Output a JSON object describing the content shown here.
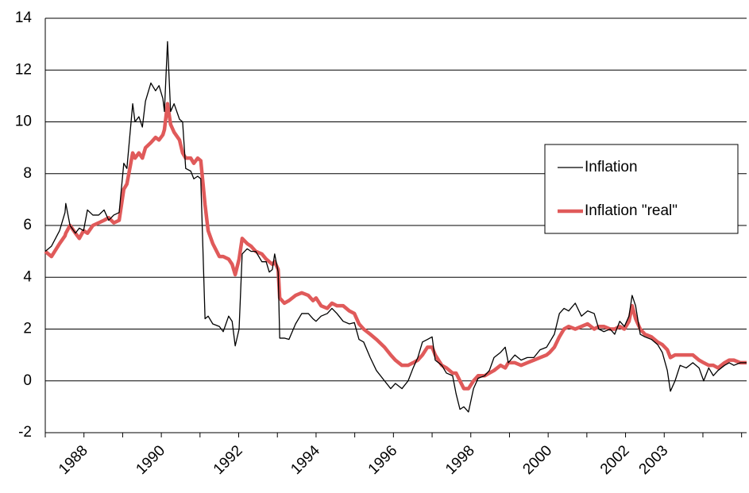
{
  "chart_data": {
    "type": "line",
    "x": [
      1987.0,
      1987.16,
      1987.37,
      1987.51,
      1987.53,
      1987.64,
      1987.78,
      1987.88,
      1987.99,
      1988.09,
      1988.23,
      1988.38,
      1988.52,
      1988.64,
      1988.77,
      1988.91,
      1989.03,
      1989.11,
      1989.26,
      1989.32,
      1989.42,
      1989.51,
      1989.59,
      1989.73,
      1989.85,
      1989.94,
      1990.04,
      1990.08,
      1990.16,
      1990.24,
      1990.33,
      1990.47,
      1990.55,
      1990.63,
      1990.76,
      1990.84,
      1990.94,
      1991.02,
      1991.13,
      1991.21,
      1991.33,
      1991.5,
      1991.6,
      1991.74,
      1991.83,
      1991.91,
      1992.01,
      1992.09,
      1992.22,
      1992.32,
      1992.44,
      1992.6,
      1992.71,
      1992.79,
      1992.87,
      1992.93,
      1993.02,
      1993.06,
      1993.18,
      1993.3,
      1993.47,
      1993.63,
      1993.8,
      1993.92,
      1994.0,
      1994.13,
      1994.29,
      1994.41,
      1994.54,
      1994.7,
      1994.86,
      1994.99,
      1995.11,
      1995.23,
      1995.4,
      1995.56,
      1995.77,
      1995.93,
      1996.05,
      1996.22,
      1996.38,
      1996.51,
      1996.63,
      1996.75,
      1996.88,
      1997.0,
      1997.08,
      1997.25,
      1997.37,
      1997.53,
      1997.62,
      1997.72,
      1997.82,
      1997.94,
      1998.07,
      1998.19,
      1998.36,
      1998.48,
      1998.6,
      1998.77,
      1998.89,
      1998.97,
      1999.14,
      1999.3,
      1999.46,
      1999.63,
      1999.79,
      1999.96,
      2000.04,
      2000.16,
      2000.29,
      2000.41,
      2000.53,
      2000.7,
      2000.86,
      2001.02,
      2001.19,
      2001.31,
      2001.44,
      2001.6,
      2001.72,
      2001.85,
      2001.97,
      2002.09,
      2002.17,
      2002.26,
      2002.38,
      2002.5,
      2002.67,
      2002.83,
      2002.95,
      2003.08,
      2003.16,
      2003.28,
      2003.41,
      2003.57,
      2003.74,
      2003.9,
      2004.02,
      2004.15,
      2004.27,
      2004.39,
      2004.56,
      2004.68,
      2004.8,
      2004.97,
      2005.13
    ],
    "series": [
      {
        "name": "Inflation",
        "color": "#000000",
        "width": 1.3,
        "values": [
          5.0,
          5.2,
          5.8,
          6.5,
          6.85,
          6.0,
          5.7,
          5.9,
          5.8,
          6.6,
          6.4,
          6.4,
          6.6,
          6.2,
          6.4,
          6.5,
          8.4,
          8.2,
          10.7,
          10.0,
          10.2,
          9.8,
          10.8,
          11.5,
          11.2,
          11.4,
          10.9,
          10.4,
          13.1,
          10.4,
          10.7,
          10.1,
          10.0,
          8.2,
          8.1,
          7.8,
          7.9,
          7.8,
          2.4,
          2.5,
          2.2,
          2.1,
          1.9,
          2.5,
          2.3,
          1.35,
          2.0,
          4.9,
          5.1,
          5.0,
          5.0,
          4.6,
          4.6,
          4.2,
          4.3,
          4.9,
          4.2,
          1.65,
          1.65,
          1.6,
          2.2,
          2.6,
          2.6,
          2.4,
          2.3,
          2.5,
          2.6,
          2.8,
          2.6,
          2.3,
          2.2,
          2.25,
          1.6,
          1.5,
          0.9,
          0.4,
          0.0,
          -0.3,
          -0.1,
          -0.3,
          0.0,
          0.5,
          0.9,
          1.5,
          1.6,
          1.7,
          0.8,
          0.6,
          0.3,
          0.2,
          -0.5,
          -1.1,
          -1.0,
          -1.2,
          -0.3,
          0.1,
          0.2,
          0.4,
          0.9,
          1.1,
          1.3,
          0.7,
          1.0,
          0.8,
          0.9,
          0.9,
          1.2,
          1.3,
          1.5,
          1.8,
          2.6,
          2.8,
          2.7,
          3.0,
          2.5,
          2.7,
          2.6,
          2.0,
          1.9,
          2.0,
          1.8,
          2.3,
          2.1,
          2.5,
          3.3,
          2.9,
          1.8,
          1.7,
          1.6,
          1.4,
          1.1,
          0.4,
          -0.4,
          0.0,
          0.6,
          0.5,
          0.7,
          0.5,
          0.0,
          0.5,
          0.2,
          0.4,
          0.6,
          0.7,
          0.6,
          0.7,
          0.7
        ]
      },
      {
        "name": "Inflation \"real\"",
        "color": "#e05a5a",
        "width": 4.5,
        "values": [
          5.0,
          4.8,
          5.3,
          5.6,
          5.7,
          6.0,
          5.7,
          5.5,
          5.8,
          5.7,
          6.0,
          6.1,
          6.2,
          6.3,
          6.1,
          6.2,
          7.4,
          7.6,
          8.8,
          8.6,
          8.8,
          8.6,
          9.0,
          9.2,
          9.4,
          9.3,
          9.5,
          9.7,
          10.7,
          9.9,
          9.6,
          9.3,
          8.8,
          8.6,
          8.6,
          8.4,
          8.6,
          8.5,
          6.8,
          5.8,
          5.3,
          4.8,
          4.8,
          4.7,
          4.5,
          4.1,
          4.7,
          5.5,
          5.3,
          5.2,
          5.0,
          4.9,
          4.7,
          4.6,
          4.5,
          4.6,
          4.3,
          3.2,
          3.0,
          3.1,
          3.3,
          3.4,
          3.3,
          3.1,
          3.2,
          2.9,
          2.8,
          3.0,
          2.9,
          2.9,
          2.7,
          2.6,
          2.2,
          2.0,
          1.8,
          1.6,
          1.3,
          1.0,
          0.8,
          0.6,
          0.6,
          0.7,
          0.8,
          1.0,
          1.3,
          1.3,
          1.0,
          0.6,
          0.5,
          0.3,
          0.3,
          0.0,
          -0.3,
          -0.3,
          0.0,
          0.2,
          0.2,
          0.3,
          0.4,
          0.6,
          0.5,
          0.7,
          0.7,
          0.6,
          0.7,
          0.8,
          0.9,
          1.0,
          1.1,
          1.3,
          1.7,
          2.0,
          2.1,
          2.0,
          2.1,
          2.2,
          2.0,
          2.1,
          2.1,
          2.0,
          2.0,
          2.1,
          2.0,
          2.3,
          2.9,
          2.4,
          2.0,
          1.8,
          1.7,
          1.5,
          1.4,
          1.2,
          0.9,
          1.0,
          1.0,
          1.0,
          1.0,
          0.8,
          0.7,
          0.6,
          0.6,
          0.5,
          0.7,
          0.8,
          0.8,
          0.7,
          0.7
        ]
      }
    ],
    "xlim": [
      1987.0,
      2005.13
    ],
    "xticks": [
      1988,
      1990,
      1992,
      1994,
      1996,
      1998,
      2000,
      2002,
      2003
    ],
    "xminor_ticks": [
      1987,
      1988,
      1989,
      1990,
      1991,
      1992,
      1993,
      1994,
      1995,
      1996,
      1997,
      1998,
      1999,
      2000,
      2001,
      2002,
      2003,
      2004,
      2005
    ],
    "ylim": [
      -2,
      14
    ],
    "yticks": [
      -2,
      0,
      2,
      4,
      6,
      8,
      10,
      12,
      14
    ],
    "grid": true,
    "legend": "right"
  }
}
